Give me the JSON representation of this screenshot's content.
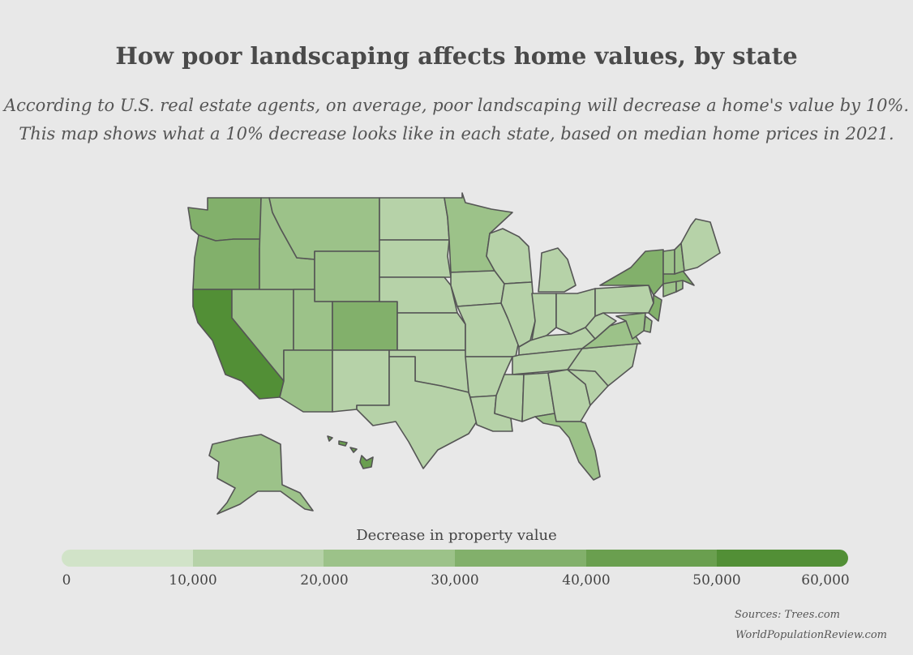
{
  "title": "How poor landscaping affects home values, by state",
  "subtitle_line1": "According to U.S. real estate agents, on average, poor landscaping will decrease a home's value by 10%.",
  "subtitle_line2": "This map shows what a 10% decrease looks like in each state, based on median home prices in 2021.",
  "legend": {
    "title": "Decrease in property value",
    "ticks": [
      "0",
      "10,000",
      "20,000",
      "30,000",
      "40,000",
      "50,000",
      "60,000"
    ],
    "colors": [
      "#d1e3c8",
      "#b6d2a8",
      "#9cc289",
      "#82b06b",
      "#6a9f4f",
      "#528f36"
    ]
  },
  "sources": {
    "line1": "Sources: Trees.com",
    "line2": "WorldPopulationReview.com"
  },
  "map_data": {
    "metric": "Decrease in property value",
    "bins": [
      {
        "range": "0–10,000",
        "color": "#d1e3c8"
      },
      {
        "range": "10,000–20,000",
        "color": "#b6d2a8"
      },
      {
        "range": "20,000–30,000",
        "color": "#9cc289"
      },
      {
        "range": "30,000–40,000",
        "color": "#82b06b"
      },
      {
        "range": "40,000–50,000",
        "color": "#6a9f4f"
      },
      {
        "range": "50,000–60,000",
        "color": "#528f36"
      }
    ],
    "states": [
      {
        "id": "WA",
        "bin": 3
      },
      {
        "id": "OR",
        "bin": 3
      },
      {
        "id": "CA",
        "bin": 5
      },
      {
        "id": "NV",
        "bin": 2
      },
      {
        "id": "ID",
        "bin": 2
      },
      {
        "id": "MT",
        "bin": 2
      },
      {
        "id": "WY",
        "bin": 2
      },
      {
        "id": "UT",
        "bin": 2
      },
      {
        "id": "CO",
        "bin": 3
      },
      {
        "id": "AZ",
        "bin": 2
      },
      {
        "id": "NM",
        "bin": 1
      },
      {
        "id": "ND",
        "bin": 1
      },
      {
        "id": "SD",
        "bin": 1
      },
      {
        "id": "NE",
        "bin": 1
      },
      {
        "id": "KS",
        "bin": 1
      },
      {
        "id": "OK",
        "bin": 1
      },
      {
        "id": "TX",
        "bin": 1
      },
      {
        "id": "MN",
        "bin": 2
      },
      {
        "id": "IA",
        "bin": 1
      },
      {
        "id": "MO",
        "bin": 1
      },
      {
        "id": "AR",
        "bin": 1
      },
      {
        "id": "LA",
        "bin": 1
      },
      {
        "id": "WI",
        "bin": 1
      },
      {
        "id": "IL",
        "bin": 1
      },
      {
        "id": "MI",
        "bin": 1
      },
      {
        "id": "IN",
        "bin": 1
      },
      {
        "id": "OH",
        "bin": 1
      },
      {
        "id": "KY",
        "bin": 1
      },
      {
        "id": "TN",
        "bin": 1
      },
      {
        "id": "MS",
        "bin": 1
      },
      {
        "id": "AL",
        "bin": 1
      },
      {
        "id": "GA",
        "bin": 1
      },
      {
        "id": "FL",
        "bin": 2
      },
      {
        "id": "SC",
        "bin": 1
      },
      {
        "id": "NC",
        "bin": 1
      },
      {
        "id": "VA",
        "bin": 2
      },
      {
        "id": "WV",
        "bin": 1
      },
      {
        "id": "PA",
        "bin": 1
      },
      {
        "id": "NY",
        "bin": 3
      },
      {
        "id": "NJ",
        "bin": 3
      },
      {
        "id": "DE",
        "bin": 2
      },
      {
        "id": "MD",
        "bin": 2
      },
      {
        "id": "CT",
        "bin": 2
      },
      {
        "id": "RI",
        "bin": 2
      },
      {
        "id": "MA",
        "bin": 3
      },
      {
        "id": "VT",
        "bin": 2
      },
      {
        "id": "NH",
        "bin": 2
      },
      {
        "id": "ME",
        "bin": 1
      },
      {
        "id": "AK",
        "bin": 2
      },
      {
        "id": "HI",
        "bin": 4
      }
    ]
  }
}
